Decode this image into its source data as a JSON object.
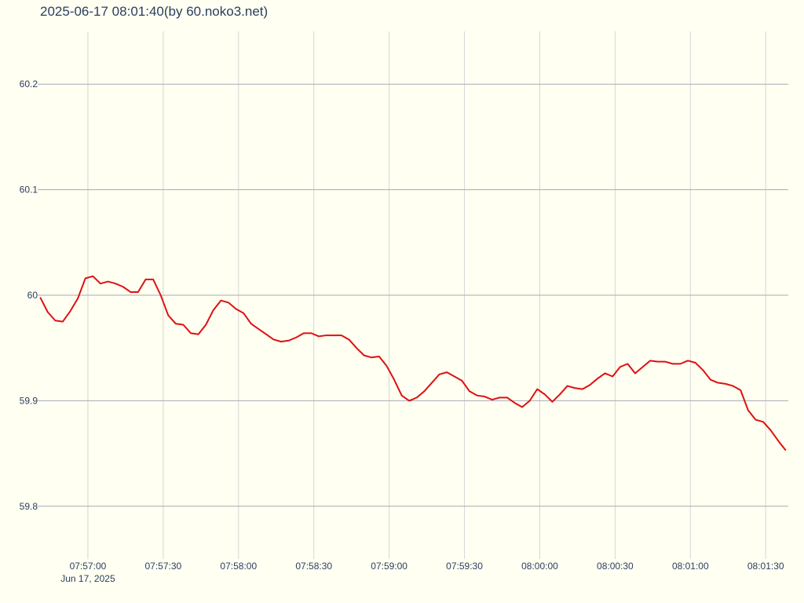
{
  "chart_data": {
    "type": "line",
    "title": "2025-06-17 08:01:40(by 60.noko3.net)",
    "x_date_label": "Jun 17, 2025",
    "x": [
      "2025-06-17 07:56:41",
      "2025-06-17 07:56:44",
      "2025-06-17 07:56:47",
      "2025-06-17 07:56:50",
      "2025-06-17 07:56:53",
      "2025-06-17 07:56:56",
      "2025-06-17 07:56:59",
      "2025-06-17 07:57:02",
      "2025-06-17 07:57:05",
      "2025-06-17 07:57:08",
      "2025-06-17 07:57:11",
      "2025-06-17 07:57:14",
      "2025-06-17 07:57:17",
      "2025-06-17 07:57:20",
      "2025-06-17 07:57:23",
      "2025-06-17 07:57:26",
      "2025-06-17 07:57:29",
      "2025-06-17 07:57:32",
      "2025-06-17 07:57:35",
      "2025-06-17 07:57:38",
      "2025-06-17 07:57:41",
      "2025-06-17 07:57:44",
      "2025-06-17 07:57:47",
      "2025-06-17 07:57:50",
      "2025-06-17 07:57:53",
      "2025-06-17 07:57:56",
      "2025-06-17 07:57:59",
      "2025-06-17 07:58:02",
      "2025-06-17 07:58:05",
      "2025-06-17 07:58:08",
      "2025-06-17 07:58:11",
      "2025-06-17 07:58:14",
      "2025-06-17 07:58:17",
      "2025-06-17 07:58:20",
      "2025-06-17 07:58:23",
      "2025-06-17 07:58:26",
      "2025-06-17 07:58:29",
      "2025-06-17 07:58:32",
      "2025-06-17 07:58:35",
      "2025-06-17 07:58:38",
      "2025-06-17 07:58:41",
      "2025-06-17 07:58:44",
      "2025-06-17 07:58:47",
      "2025-06-17 07:58:50",
      "2025-06-17 07:58:53",
      "2025-06-17 07:58:56",
      "2025-06-17 07:58:59",
      "2025-06-17 07:59:02",
      "2025-06-17 07:59:05",
      "2025-06-17 07:59:08",
      "2025-06-17 07:59:11",
      "2025-06-17 07:59:14",
      "2025-06-17 07:59:17",
      "2025-06-17 07:59:20",
      "2025-06-17 07:59:23",
      "2025-06-17 07:59:26",
      "2025-06-17 07:59:29",
      "2025-06-17 07:59:32",
      "2025-06-17 07:59:35",
      "2025-06-17 07:59:38",
      "2025-06-17 07:59:41",
      "2025-06-17 07:59:44",
      "2025-06-17 07:59:47",
      "2025-06-17 07:59:50",
      "2025-06-17 07:59:53",
      "2025-06-17 07:59:56",
      "2025-06-17 07:59:59",
      "2025-06-17 08:00:02",
      "2025-06-17 08:00:05",
      "2025-06-17 08:00:08",
      "2025-06-17 08:00:11",
      "2025-06-17 08:00:14",
      "2025-06-17 08:00:17",
      "2025-06-17 08:00:20",
      "2025-06-17 08:00:23",
      "2025-06-17 08:00:26",
      "2025-06-17 08:00:29",
      "2025-06-17 08:00:32",
      "2025-06-17 08:00:35",
      "2025-06-17 08:00:38",
      "2025-06-17 08:00:41",
      "2025-06-17 08:00:44",
      "2025-06-17 08:00:47",
      "2025-06-17 08:00:50",
      "2025-06-17 08:00:53",
      "2025-06-17 08:00:56",
      "2025-06-17 08:00:59",
      "2025-06-17 08:01:02",
      "2025-06-17 08:01:05",
      "2025-06-17 08:01:08",
      "2025-06-17 08:01:11",
      "2025-06-17 08:01:14",
      "2025-06-17 08:01:17",
      "2025-06-17 08:01:20",
      "2025-06-17 08:01:23",
      "2025-06-17 08:01:26",
      "2025-06-17 08:01:29",
      "2025-06-17 08:01:32",
      "2025-06-17 08:01:35",
      "2025-06-17 08:01:38"
    ],
    "series": [
      {
        "color": "#dd1111",
        "values": [
          59.998,
          59.984,
          59.976,
          59.975,
          59.985,
          59.997,
          60.016,
          60.018,
          60.011,
          60.013,
          60.011,
          60.008,
          60.003,
          60.003,
          60.015,
          60.015,
          60.0,
          59.981,
          59.973,
          59.972,
          59.964,
          59.963,
          59.972,
          59.986,
          59.995,
          59.993,
          59.987,
          59.983,
          59.973,
          59.968,
          59.963,
          59.958,
          59.956,
          59.957,
          59.96,
          59.964,
          59.964,
          59.961,
          59.962,
          59.962,
          59.962,
          59.958,
          59.95,
          59.943,
          59.941,
          59.942,
          59.933,
          59.92,
          59.905,
          59.9,
          59.903,
          59.909,
          59.917,
          59.925,
          59.927,
          59.923,
          59.919,
          59.909,
          59.905,
          59.904,
          59.901,
          59.903,
          59.903,
          59.898,
          59.894,
          59.9,
          59.911,
          59.906,
          59.899,
          59.906,
          59.914,
          59.912,
          59.911,
          59.915,
          59.921,
          59.926,
          59.923,
          59.932,
          59.935,
          59.926,
          59.932,
          59.938,
          59.937,
          59.937,
          59.935,
          59.935,
          59.938,
          59.936,
          59.929,
          59.92,
          59.917,
          59.916,
          59.914,
          59.91,
          59.891,
          59.882,
          59.88,
          59.872,
          59.862,
          59.853
        ]
      }
    ],
    "xlim": [
      "2025-06-17 07:56:40",
      "2025-06-17 08:01:39"
    ],
    "xticks": [
      {
        "value": "2025-06-17 07:57:00",
        "label": "07:57:00"
      },
      {
        "value": "2025-06-17 07:57:30",
        "label": "07:57:30"
      },
      {
        "value": "2025-06-17 07:58:00",
        "label": "07:58:00"
      },
      {
        "value": "2025-06-17 07:58:30",
        "label": "07:58:30"
      },
      {
        "value": "2025-06-17 07:59:00",
        "label": "07:59:00"
      },
      {
        "value": "2025-06-17 07:59:30",
        "label": "07:59:30"
      },
      {
        "value": "2025-06-17 08:00:00",
        "label": "08:00:00"
      },
      {
        "value": "2025-06-17 08:00:30",
        "label": "08:00:30"
      },
      {
        "value": "2025-06-17 08:01:00",
        "label": "08:01:00"
      },
      {
        "value": "2025-06-17 08:01:30",
        "label": "08:01:30"
      }
    ],
    "ylim": [
      59.75,
      60.25
    ],
    "yticks": [
      59.8,
      59.9,
      60,
      60.1,
      60.2
    ],
    "grid": true
  }
}
